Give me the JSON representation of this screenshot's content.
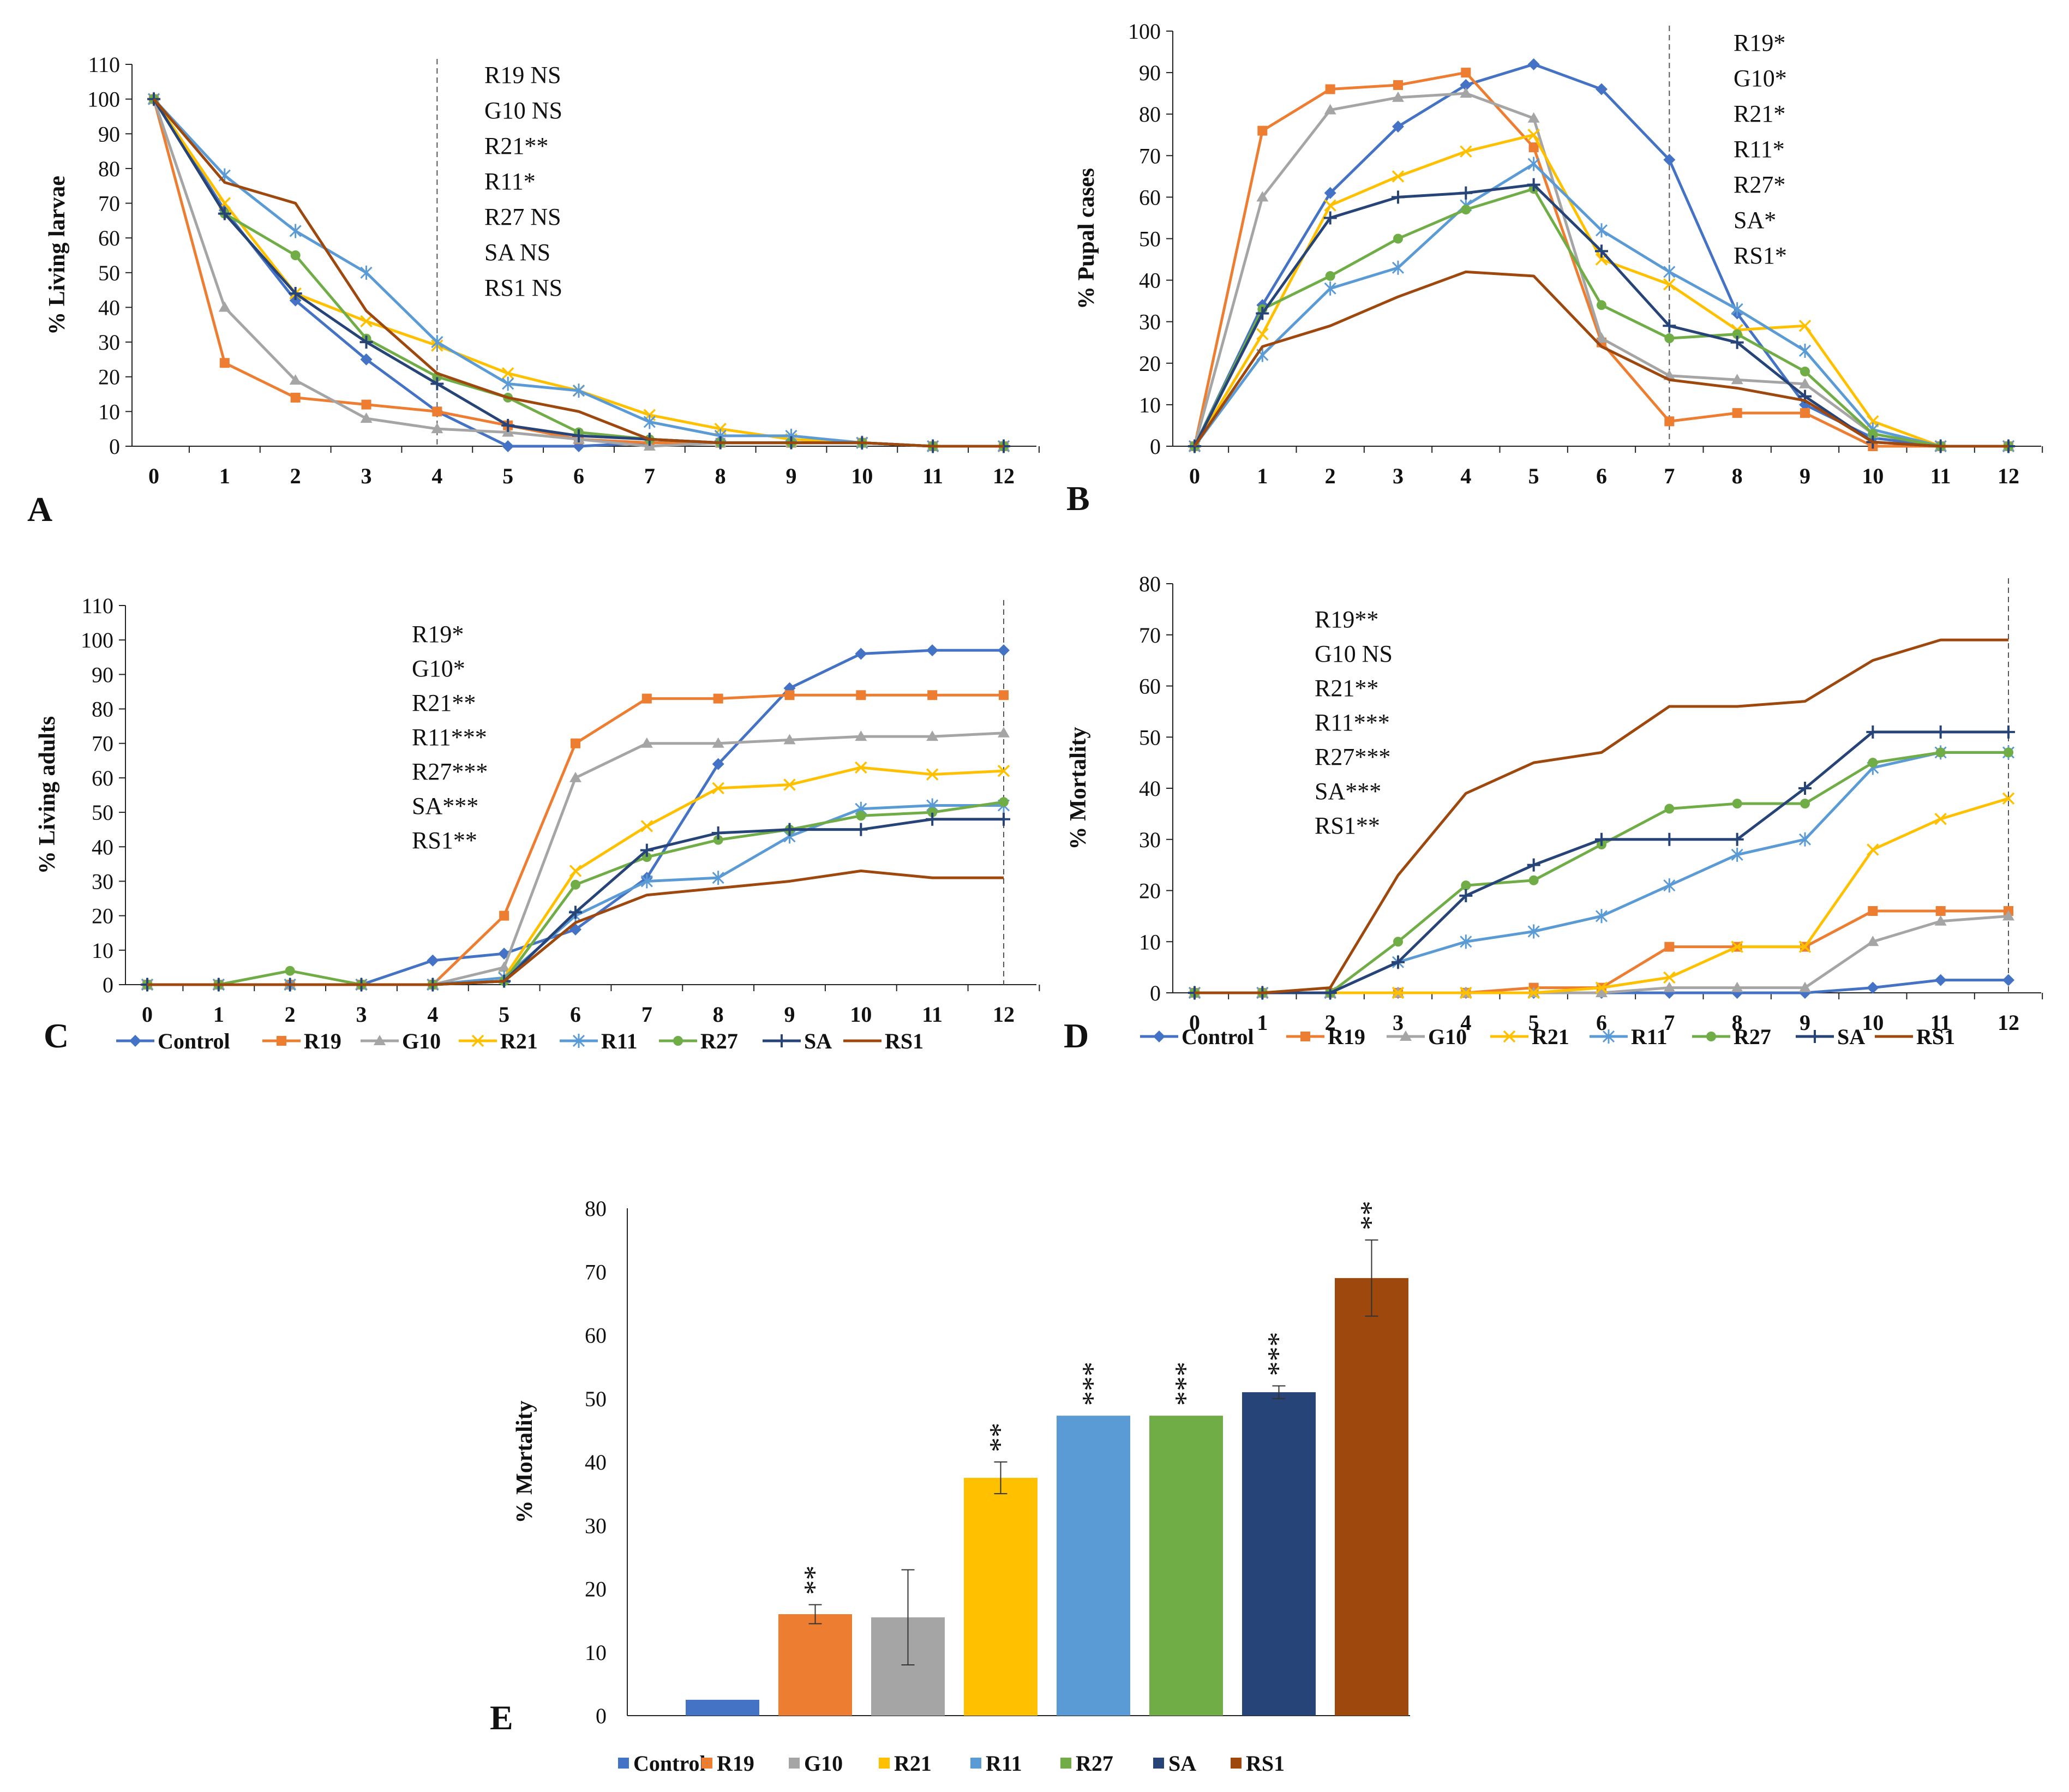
{
  "legend_items": [
    {
      "name": "Control",
      "color": "#4472C4",
      "marker": "diamond"
    },
    {
      "name": "R19",
      "color": "#ED7D31",
      "marker": "square"
    },
    {
      "name": "G10",
      "color": "#A5A5A5",
      "marker": "triangle"
    },
    {
      "name": "R21",
      "color": "#FFC000",
      "marker": "x"
    },
    {
      "name": "R11",
      "color": "#5B9BD5",
      "marker": "star"
    },
    {
      "name": "R27",
      "color": "#70AD47",
      "marker": "circle"
    },
    {
      "name": "SA",
      "color": "#264478",
      "marker": "plus"
    },
    {
      "name": "RS1",
      "color": "#9E480E",
      "marker": "none"
    }
  ],
  "chart_data": [
    {
      "panel": "A",
      "type": "line",
      "ylabel": "% Living larvae",
      "xlabel": "",
      "x": [
        0,
        1,
        2,
        3,
        4,
        5,
        6,
        7,
        8,
        9,
        10,
        11,
        12
      ],
      "ylim": [
        0,
        110
      ],
      "yticks": [
        0,
        10,
        20,
        30,
        40,
        50,
        60,
        70,
        80,
        90,
        100,
        110
      ],
      "vline_x": 4,
      "annotations": [
        "R19  NS",
        "G10  NS",
        "R21**",
        "R11*",
        "R27  NS",
        "SA   NS",
        "RS1  NS"
      ],
      "series": [
        {
          "name": "Control",
          "values": [
            100,
            68,
            42,
            25,
            10,
            0,
            0,
            1,
            1,
            1,
            1,
            0,
            0
          ]
        },
        {
          "name": "R19",
          "values": [
            100,
            24,
            14,
            12,
            10,
            6,
            2,
            1,
            1,
            1,
            1,
            0,
            0
          ]
        },
        {
          "name": "G10",
          "values": [
            100,
            40,
            19,
            8,
            5,
            4,
            2,
            0,
            1,
            1,
            1,
            0,
            0
          ]
        },
        {
          "name": "R21",
          "values": [
            100,
            70,
            44,
            36,
            29,
            21,
            16,
            9,
            5,
            2,
            1,
            0,
            0
          ]
        },
        {
          "name": "R11",
          "values": [
            100,
            78,
            62,
            50,
            30,
            18,
            16,
            7,
            3,
            3,
            1,
            0,
            0
          ]
        },
        {
          "name": "R27",
          "values": [
            100,
            67,
            55,
            31,
            20,
            14,
            4,
            2,
            1,
            1,
            1,
            0,
            0
          ]
        },
        {
          "name": "SA",
          "values": [
            100,
            67,
            44,
            30,
            18,
            6,
            3,
            2,
            1,
            1,
            1,
            0,
            0
          ]
        },
        {
          "name": "RS1",
          "values": [
            100,
            76,
            70,
            39,
            21,
            14,
            10,
            2,
            1,
            1,
            1,
            0,
            0
          ]
        }
      ]
    },
    {
      "panel": "B",
      "type": "line",
      "ylabel": "% Pupal cases",
      "xlabel": "",
      "x": [
        0,
        1,
        2,
        3,
        4,
        5,
        6,
        7,
        8,
        9,
        10,
        11,
        12
      ],
      "ylim": [
        0,
        100
      ],
      "yticks": [
        0,
        10,
        20,
        30,
        40,
        50,
        60,
        70,
        80,
        90,
        100
      ],
      "vline_x": 7,
      "annotations": [
        "R19*",
        "G10*",
        "R21*",
        "R11*",
        "R27*",
        "SA*",
        "RS1*"
      ],
      "series": [
        {
          "name": "Control",
          "values": [
            0,
            34,
            61,
            77,
            87,
            92,
            86,
            69,
            32,
            10,
            2,
            0,
            0
          ]
        },
        {
          "name": "R19",
          "values": [
            0,
            76,
            86,
            87,
            90,
            72,
            25,
            6,
            8,
            8,
            0,
            0,
            0
          ]
        },
        {
          "name": "G10",
          "values": [
            0,
            60,
            81,
            84,
            85,
            79,
            26,
            17,
            16,
            15,
            3,
            0,
            0
          ]
        },
        {
          "name": "R21",
          "values": [
            0,
            27,
            58,
            65,
            71,
            75,
            45,
            39,
            28,
            29,
            6,
            0,
            0
          ]
        },
        {
          "name": "R11",
          "values": [
            0,
            22,
            38,
            43,
            58,
            68,
            52,
            42,
            33,
            23,
            4,
            0,
            0
          ]
        },
        {
          "name": "R27",
          "values": [
            0,
            33,
            41,
            50,
            57,
            62,
            34,
            26,
            27,
            18,
            3,
            0,
            0
          ]
        },
        {
          "name": "SA",
          "values": [
            0,
            32,
            55,
            60,
            61,
            63,
            47,
            29,
            25,
            12,
            1,
            0,
            0
          ]
        },
        {
          "name": "RS1",
          "values": [
            0,
            24,
            29,
            36,
            42,
            41,
            24,
            16,
            14,
            11,
            1,
            0,
            0
          ]
        }
      ]
    },
    {
      "panel": "C",
      "type": "line",
      "ylabel": "% Living adults",
      "xlabel": "",
      "x": [
        0,
        1,
        2,
        3,
        4,
        5,
        6,
        7,
        8,
        9,
        10,
        11,
        12
      ],
      "ylim": [
        0,
        110
      ],
      "yticks": [
        0,
        10,
        20,
        30,
        40,
        50,
        60,
        70,
        80,
        90,
        100,
        110
      ],
      "vline_x": 12,
      "annotations": [
        "R19*",
        "G10*",
        "R21**",
        "R11***",
        "R27***",
        "SA***",
        "RS1**"
      ],
      "series": [
        {
          "name": "Control",
          "values": [
            0,
            0,
            0,
            0,
            7,
            9,
            16,
            31,
            64,
            86,
            96,
            97,
            97
          ]
        },
        {
          "name": "R19",
          "values": [
            0,
            0,
            0,
            0,
            0,
            20,
            70,
            83,
            83,
            84,
            84,
            84,
            84
          ]
        },
        {
          "name": "G10",
          "values": [
            0,
            0,
            0,
            0,
            0,
            5,
            60,
            70,
            70,
            71,
            72,
            72,
            73
          ]
        },
        {
          "name": "R21",
          "values": [
            0,
            0,
            0,
            0,
            0,
            2,
            33,
            46,
            57,
            58,
            63,
            61,
            62
          ]
        },
        {
          "name": "R11",
          "values": [
            0,
            0,
            0,
            0,
            0,
            2,
            20,
            30,
            31,
            43,
            51,
            52,
            52
          ]
        },
        {
          "name": "R27",
          "values": [
            0,
            0,
            4,
            0,
            0,
            1,
            29,
            37,
            42,
            45,
            49,
            50,
            53
          ]
        },
        {
          "name": "SA",
          "values": [
            0,
            0,
            0,
            0,
            0,
            1,
            21,
            39,
            44,
            45,
            45,
            48,
            48
          ]
        },
        {
          "name": "RS1",
          "values": [
            0,
            0,
            0,
            0,
            0,
            1,
            18,
            26,
            28,
            30,
            33,
            31,
            31
          ]
        }
      ]
    },
    {
      "panel": "D",
      "type": "line",
      "ylabel": "% Mortality",
      "xlabel": "",
      "x": [
        0,
        1,
        2,
        3,
        4,
        5,
        6,
        7,
        8,
        9,
        10,
        11,
        12
      ],
      "ylim": [
        0,
        80
      ],
      "yticks": [
        0,
        10,
        20,
        30,
        40,
        50,
        60,
        70,
        80
      ],
      "vline_x": 12,
      "annotations": [
        "R19**",
        "G10  NS",
        "R21**",
        "R11***",
        "R27***",
        "SA***",
        "RS1**"
      ],
      "series": [
        {
          "name": "Control",
          "values": [
            0,
            0,
            0,
            0,
            0,
            0,
            0,
            0,
            0,
            0,
            1,
            2.5,
            2.5
          ]
        },
        {
          "name": "R19",
          "values": [
            0,
            0,
            0,
            0,
            0,
            1,
            1,
            9,
            9,
            9,
            16,
            16,
            16
          ]
        },
        {
          "name": "G10",
          "values": [
            0,
            0,
            0,
            0,
            0,
            0,
            0,
            1,
            1,
            1,
            10,
            14,
            15
          ]
        },
        {
          "name": "R21",
          "values": [
            0,
            0,
            0,
            0,
            0,
            0,
            1,
            3,
            9,
            9,
            28,
            34,
            38
          ]
        },
        {
          "name": "R11",
          "values": [
            0,
            0,
            0,
            6,
            10,
            12,
            15,
            21,
            27,
            30,
            44,
            47,
            47
          ]
        },
        {
          "name": "R27",
          "values": [
            0,
            0,
            0,
            10,
            21,
            22,
            29,
            36,
            37,
            37,
            45,
            47,
            47
          ]
        },
        {
          "name": "SA",
          "values": [
            0,
            0,
            0,
            6,
            19,
            25,
            30,
            30,
            30,
            40,
            51,
            51,
            51
          ]
        },
        {
          "name": "RS1",
          "values": [
            0,
            0,
            1,
            23,
            39,
            45,
            47,
            56,
            56,
            57,
            65,
            69,
            69
          ]
        }
      ]
    },
    {
      "panel": "E",
      "type": "bar",
      "ylabel": "% Mortality",
      "xlabel": "",
      "categories": [
        "Control",
        "R19",
        "G10",
        "R21",
        "R11",
        "R27",
        "SA",
        "RS1"
      ],
      "values": [
        2.5,
        16,
        15.5,
        37.5,
        47.3,
        47.3,
        51,
        69
      ],
      "errors": [
        0,
        1.5,
        7.5,
        2.5,
        0,
        0,
        1,
        6
      ],
      "significance": [
        "",
        "**",
        "",
        "**",
        "***",
        "***",
        "***",
        "**"
      ],
      "ylim": [
        0,
        80
      ],
      "yticks": [
        0,
        10,
        20,
        30,
        40,
        50,
        60,
        70,
        80
      ]
    }
  ]
}
